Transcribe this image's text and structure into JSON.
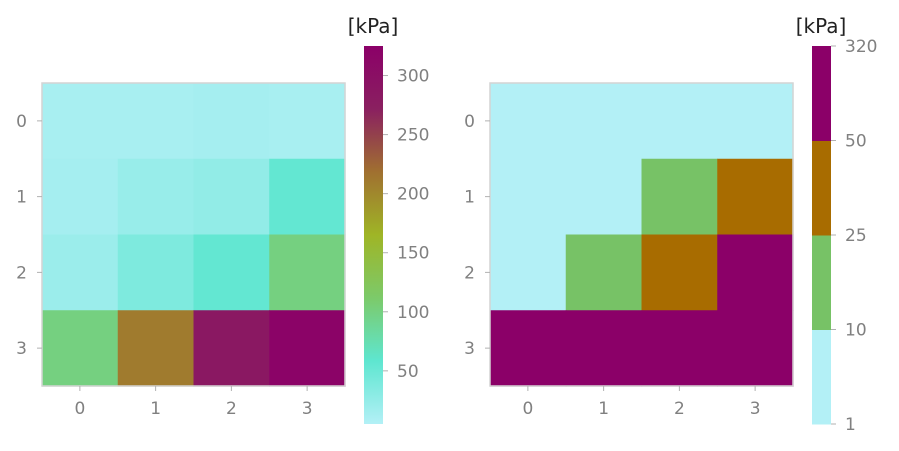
{
  "chart_data": [
    {
      "type": "heatmap",
      "x": [
        0,
        1,
        2,
        3
      ],
      "y": [
        0,
        1,
        2,
        3
      ],
      "values": [
        [
          12,
          12,
          14,
          12
        ],
        [
          14,
          22,
          26,
          55
        ],
        [
          20,
          38,
          55,
          100
        ],
        [
          100,
          210,
          285,
          320
        ]
      ],
      "colorbar": {
        "label": "[kPa]",
        "scale": "linear",
        "range": [
          5,
          325
        ],
        "ticks": [
          50,
          100,
          150,
          200,
          250,
          300
        ],
        "colors": [
          "#b3f0f6",
          "#5ee6d0",
          "#7cca6a",
          "#9fb526",
          "#a07030",
          "#8a2060",
          "#8b0068"
        ]
      }
    },
    {
      "type": "heatmap",
      "x": [
        0,
        1,
        2,
        3
      ],
      "y": [
        0,
        1,
        2,
        3
      ],
      "values": [
        [
          5,
          5,
          5,
          5
        ],
        [
          5,
          5,
          17,
          35
        ],
        [
          5,
          17,
          35,
          100
        ],
        [
          100,
          100,
          100,
          100
        ]
      ],
      "colorbar": {
        "label": "[kPa]",
        "scale": "discrete",
        "ticks": [
          1,
          10,
          25,
          50,
          320
        ],
        "colors": [
          "#b3f0f6",
          "#77c266",
          "#a86c00",
          "#8b0068"
        ]
      }
    }
  ]
}
